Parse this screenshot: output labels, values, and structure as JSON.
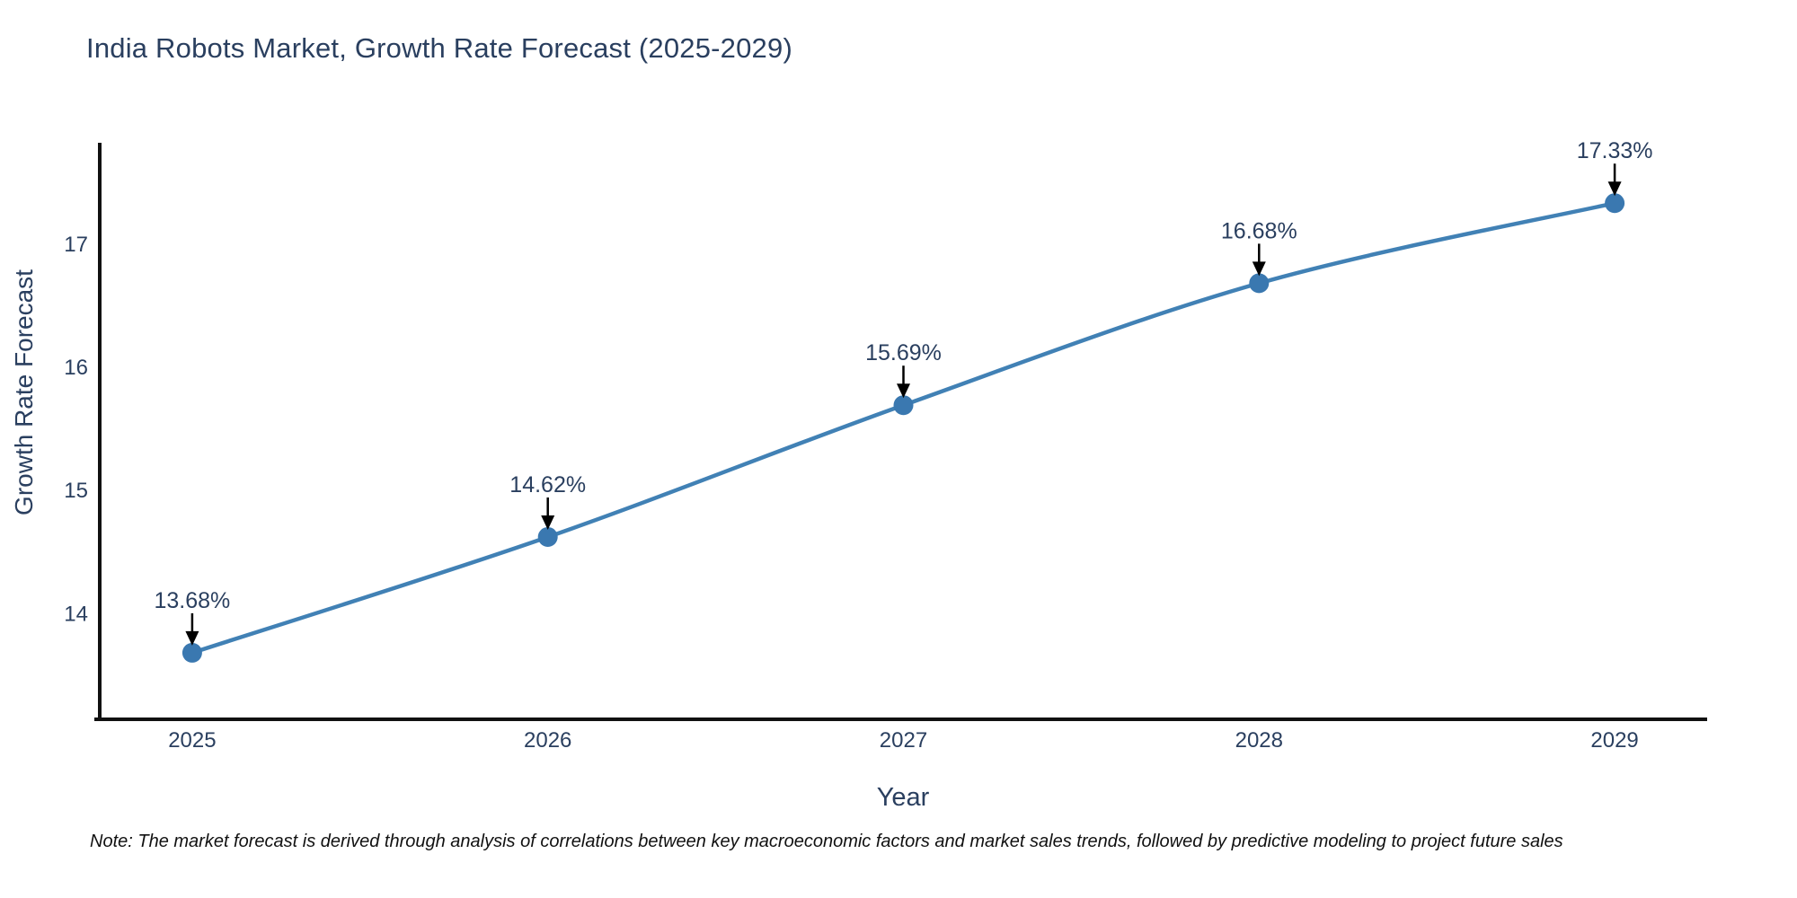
{
  "title": "India Robots Market, Growth Rate Forecast (2025-2029)",
  "note": "Note: The market forecast is derived through analysis of correlations between key macroeconomic factors and market sales trends, followed by predictive modeling to project future sales",
  "chart_data": {
    "type": "line",
    "title": "India Robots Market, Growth Rate Forecast (2025-2029)",
    "xlabel": "Year",
    "ylabel": "Growth Rate Forecast",
    "x": [
      2025,
      2026,
      2027,
      2028,
      2029
    ],
    "y": [
      13.68,
      14.62,
      15.69,
      16.68,
      17.33
    ],
    "point_labels": [
      "13.68%",
      "14.62%",
      "15.69%",
      "16.68%",
      "17.33%"
    ],
    "xticks": [
      "2025",
      "2026",
      "2027",
      "2028",
      "2029"
    ],
    "yticks": [
      14,
      15,
      16,
      17
    ],
    "xlim": [
      2024.74,
      2029.26
    ],
    "ylim": [
      13.14,
      17.82
    ],
    "grid": false,
    "legend": false,
    "colors": {
      "line": "#4181b5",
      "marker": "#3a78b0",
      "axis": "#111111",
      "text": "#2a3f5f",
      "annotation_text": "#2a3f5f",
      "annotation_arrow": "#000000"
    }
  }
}
